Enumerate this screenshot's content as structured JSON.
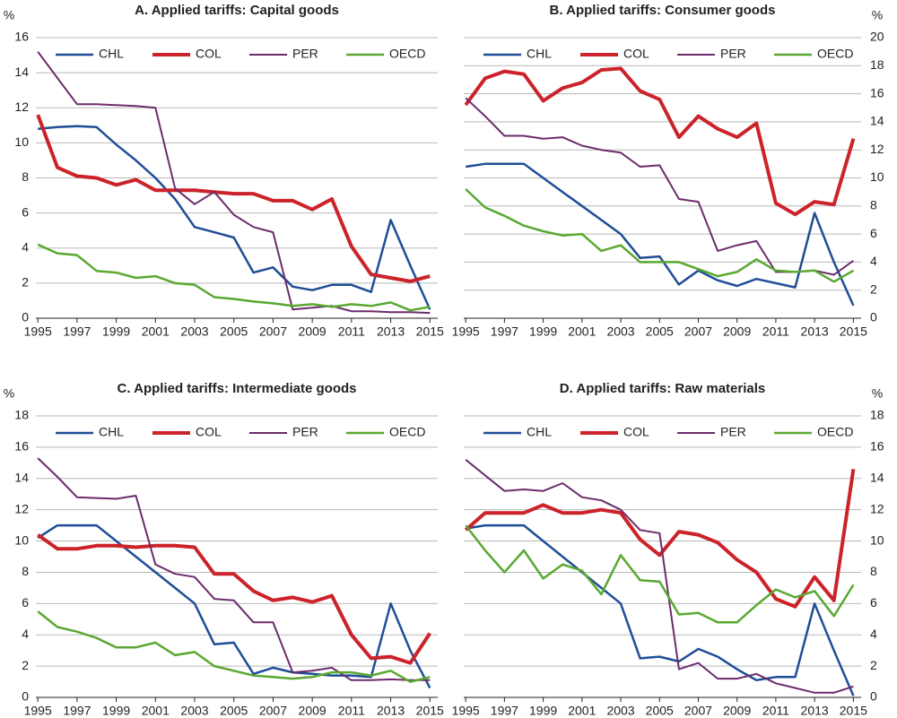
{
  "chart_data": [
    {
      "type": "line",
      "title": "A. Applied tariffs: Capital goods",
      "y_unit": "%",
      "y_axis_side": "left",
      "x": [
        1995,
        1996,
        1997,
        1998,
        1999,
        2000,
        2001,
        2002,
        2003,
        2004,
        2005,
        2006,
        2007,
        2008,
        2009,
        2010,
        2011,
        2012,
        2013,
        2014,
        2015
      ],
      "xlim": [
        1994.9,
        2015.4
      ],
      "xticks": [
        1995,
        1997,
        1999,
        2001,
        2003,
        2005,
        2007,
        2009,
        2011,
        2013,
        2015
      ],
      "ylim": [
        0,
        16
      ],
      "yticks": [
        0,
        2,
        4,
        6,
        8,
        10,
        12,
        14,
        16
      ],
      "grid": true,
      "series": [
        {
          "name": "CHL",
          "color": "#1f4e96",
          "values": [
            10.8,
            10.9,
            10.95,
            10.9,
            9.9,
            9.0,
            8.0,
            6.8,
            5.2,
            4.9,
            4.6,
            2.6,
            2.9,
            1.8,
            1.6,
            1.9,
            1.9,
            1.5,
            5.6,
            3.0,
            0.5
          ]
        },
        {
          "name": "COL",
          "color": "#cc2229",
          "values": [
            11.6,
            8.6,
            8.1,
            8.0,
            7.6,
            7.9,
            7.3,
            7.3,
            7.3,
            7.2,
            7.1,
            7.1,
            6.7,
            6.7,
            6.2,
            6.8,
            4.1,
            2.5,
            2.3,
            2.1,
            2.4
          ]
        },
        {
          "name": "PER",
          "color": "#6b2c6b",
          "values": [
            15.2,
            13.7,
            12.2,
            12.2,
            12.15,
            12.1,
            12.0,
            7.4,
            6.5,
            7.2,
            5.9,
            5.2,
            4.9,
            0.5,
            0.6,
            0.7,
            0.4,
            0.4,
            0.35,
            0.35,
            0.3
          ]
        },
        {
          "name": "OECD",
          "color": "#5aa832",
          "values": [
            4.2,
            3.7,
            3.6,
            2.7,
            2.6,
            2.3,
            2.4,
            2.0,
            1.9,
            1.2,
            1.1,
            0.95,
            0.85,
            0.7,
            0.8,
            0.65,
            0.8,
            0.7,
            0.9,
            0.45,
            0.65
          ]
        }
      ]
    },
    {
      "type": "line",
      "title": "B. Applied tariffs: Consumer goods",
      "y_unit": "%",
      "y_axis_side": "right",
      "x": [
        1995,
        1996,
        1997,
        1998,
        1999,
        2000,
        2001,
        2002,
        2003,
        2004,
        2005,
        2006,
        2007,
        2008,
        2009,
        2010,
        2011,
        2012,
        2013,
        2014,
        2015
      ],
      "xlim": [
        1994.9,
        2015.4
      ],
      "xticks": [
        1995,
        1997,
        1999,
        2001,
        2003,
        2005,
        2007,
        2009,
        2011,
        2013,
        2015
      ],
      "ylim": [
        0,
        20
      ],
      "yticks": [
        0,
        2,
        4,
        6,
        8,
        10,
        12,
        14,
        16,
        18,
        20
      ],
      "grid": true,
      "series": [
        {
          "name": "CHL",
          "color": "#1f4e96",
          "values": [
            10.8,
            11.0,
            11.0,
            11.0,
            10.0,
            9.0,
            8.0,
            7.0,
            6.0,
            4.3,
            4.4,
            2.4,
            3.4,
            2.7,
            2.3,
            2.8,
            2.5,
            2.2,
            7.5,
            4.0,
            0.9
          ]
        },
        {
          "name": "COL",
          "color": "#cc2229",
          "values": [
            15.2,
            17.1,
            17.6,
            17.4,
            15.5,
            16.4,
            16.8,
            17.7,
            17.8,
            16.2,
            15.6,
            12.9,
            14.4,
            13.5,
            12.9,
            13.9,
            8.2,
            7.4,
            8.3,
            8.1,
            12.8
          ]
        },
        {
          "name": "PER",
          "color": "#6b2c6b",
          "values": [
            15.7,
            14.4,
            13.0,
            13.0,
            12.8,
            12.9,
            12.3,
            12.0,
            11.8,
            10.8,
            10.9,
            8.5,
            8.3,
            4.8,
            5.2,
            5.5,
            3.3,
            3.3,
            3.4,
            3.1,
            4.1
          ]
        },
        {
          "name": "OECD",
          "color": "#5aa832",
          "values": [
            9.2,
            7.9,
            7.3,
            6.6,
            6.2,
            5.9,
            6.0,
            4.8,
            5.2,
            4.0,
            4.0,
            4.0,
            3.5,
            3.0,
            3.3,
            4.2,
            3.4,
            3.3,
            3.4,
            2.6,
            3.4
          ]
        }
      ]
    },
    {
      "type": "line",
      "title": "C. Applied tariffs: Intermediate goods",
      "y_unit": "%",
      "y_axis_side": "left",
      "x": [
        1995,
        1996,
        1997,
        1998,
        1999,
        2000,
        2001,
        2002,
        2003,
        2004,
        2005,
        2006,
        2007,
        2008,
        2009,
        2010,
        2011,
        2012,
        2013,
        2014,
        2015
      ],
      "xlim": [
        1994.9,
        2015.4
      ],
      "xticks": [
        1995,
        1997,
        1999,
        2001,
        2003,
        2005,
        2007,
        2009,
        2011,
        2013,
        2015
      ],
      "ylim": [
        0,
        18
      ],
      "yticks": [
        0,
        2,
        4,
        6,
        8,
        10,
        12,
        14,
        16,
        18
      ],
      "grid": true,
      "series": [
        {
          "name": "CHL",
          "color": "#1f4e96",
          "values": [
            10.2,
            11.0,
            11.0,
            11.0,
            10.0,
            9.0,
            8.0,
            7.0,
            6.0,
            3.4,
            3.5,
            1.5,
            1.9,
            1.6,
            1.5,
            1.4,
            1.4,
            1.3,
            6.0,
            3.0,
            0.6
          ]
        },
        {
          "name": "COL",
          "color": "#cc2229",
          "values": [
            10.4,
            9.5,
            9.5,
            9.7,
            9.7,
            9.6,
            9.7,
            9.7,
            9.6,
            7.9,
            7.9,
            6.8,
            6.2,
            6.4,
            6.1,
            6.5,
            4.0,
            2.5,
            2.6,
            2.2,
            4.1
          ]
        },
        {
          "name": "PER",
          "color": "#6b2c6b",
          "values": [
            15.3,
            14.1,
            12.8,
            12.75,
            12.7,
            12.9,
            8.5,
            7.9,
            7.7,
            6.3,
            6.2,
            4.8,
            4.8,
            1.6,
            1.7,
            1.9,
            1.1,
            1.1,
            1.15,
            1.1,
            1.1
          ]
        },
        {
          "name": "OECD",
          "color": "#5aa832",
          "values": [
            5.5,
            4.5,
            4.2,
            3.8,
            3.2,
            3.2,
            3.5,
            2.7,
            2.9,
            2.0,
            1.7,
            1.4,
            1.3,
            1.2,
            1.3,
            1.6,
            1.6,
            1.4,
            1.7,
            1.0,
            1.3
          ]
        }
      ]
    },
    {
      "type": "line",
      "title": "D. Applied tariffs: Raw materials",
      "y_unit": "%",
      "y_axis_side": "right",
      "x": [
        1995,
        1996,
        1997,
        1998,
        1999,
        2000,
        2001,
        2002,
        2003,
        2004,
        2005,
        2006,
        2007,
        2008,
        2009,
        2010,
        2011,
        2012,
        2013,
        2014,
        2015
      ],
      "xlim": [
        1994.9,
        2015.4
      ],
      "xticks": [
        1995,
        1997,
        1999,
        2001,
        2003,
        2005,
        2007,
        2009,
        2011,
        2013,
        2015
      ],
      "ylim": [
        0,
        18
      ],
      "yticks": [
        0,
        2,
        4,
        6,
        8,
        10,
        12,
        14,
        16,
        18
      ],
      "grid": true,
      "series": [
        {
          "name": "CHL",
          "color": "#1f4e96",
          "values": [
            10.8,
            11.0,
            11.0,
            11.0,
            10.0,
            9.0,
            8.0,
            7.0,
            6.0,
            2.5,
            2.6,
            2.3,
            3.1,
            2.6,
            1.8,
            1.1,
            1.3,
            1.3,
            6.0,
            3.0,
            0.1
          ]
        },
        {
          "name": "COL",
          "color": "#cc2229",
          "values": [
            10.7,
            11.8,
            11.8,
            11.8,
            12.3,
            11.8,
            11.8,
            12.0,
            11.8,
            10.1,
            9.1,
            10.6,
            10.4,
            9.9,
            8.8,
            8.0,
            6.3,
            5.8,
            7.7,
            6.2,
            14.6
          ]
        },
        {
          "name": "PER",
          "color": "#6b2c6b",
          "values": [
            15.2,
            14.2,
            13.2,
            13.3,
            13.2,
            13.7,
            12.8,
            12.6,
            12.0,
            10.7,
            10.5,
            1.8,
            2.2,
            1.2,
            1.2,
            1.5,
            0.9,
            0.6,
            0.3,
            0.3,
            0.7
          ]
        },
        {
          "name": "OECD",
          "color": "#5aa832",
          "values": [
            11.0,
            9.4,
            8.0,
            9.4,
            7.6,
            8.5,
            8.1,
            6.6,
            9.1,
            7.5,
            7.4,
            5.3,
            5.4,
            4.8,
            4.8,
            5.9,
            6.9,
            6.4,
            6.8,
            5.2,
            7.2
          ]
        }
      ]
    }
  ]
}
